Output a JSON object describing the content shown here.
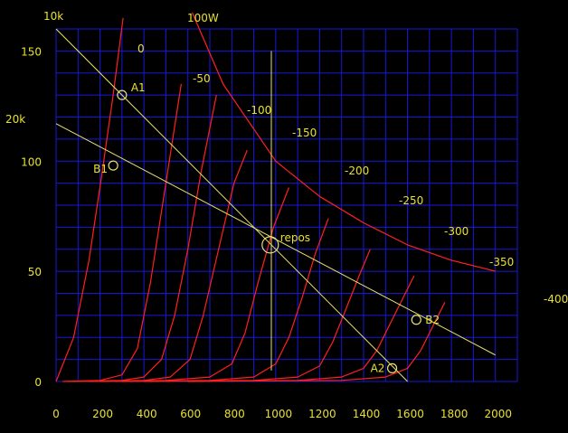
{
  "chart_data": {
    "type": "line",
    "title": "",
    "xlabel": "",
    "ylabel": "",
    "xlim": [
      0,
      2100
    ],
    "ylim": [
      0,
      160
    ],
    "x_ticks": [
      "0",
      "200",
      "400",
      "600",
      "800",
      "1000",
      "1200",
      "1400",
      "1600",
      "1800",
      "2000"
    ],
    "x_tick_values": [
      0,
      200,
      400,
      600,
      800,
      1000,
      1200,
      1400,
      1600,
      1800,
      2000
    ],
    "y_ticks": [
      "0",
      "50",
      "100",
      "150"
    ],
    "y_tick_values": [
      0,
      50,
      100,
      150
    ],
    "grid": true,
    "colors": {
      "background": "#000000",
      "grid": "#1818d8",
      "curves": "#ff2020",
      "load_lines": "#e8e070",
      "text": "#e8e030"
    },
    "series": [
      {
        "name": "0",
        "points": [
          [
            0,
            0
          ],
          [
            80,
            20
          ],
          [
            150,
            55
          ],
          [
            210,
            95
          ],
          [
            260,
            130
          ],
          [
            305,
            165
          ]
        ]
      },
      {
        "name": "-50",
        "points": [
          [
            30,
            0
          ],
          [
            200,
            0.5
          ],
          [
            300,
            3
          ],
          [
            370,
            15
          ],
          [
            430,
            45
          ],
          [
            500,
            90
          ],
          [
            570,
            135
          ]
        ]
      },
      {
        "name": "-100",
        "points": [
          [
            50,
            0
          ],
          [
            300,
            0.5
          ],
          [
            400,
            2
          ],
          [
            480,
            10
          ],
          [
            540,
            30
          ],
          [
            600,
            60
          ],
          [
            660,
            95
          ],
          [
            730,
            130
          ]
        ]
      },
      {
        "name": "-150",
        "points": [
          [
            80,
            0
          ],
          [
            400,
            0.5
          ],
          [
            520,
            2
          ],
          [
            610,
            10
          ],
          [
            670,
            30
          ],
          [
            740,
            60
          ],
          [
            810,
            90
          ],
          [
            870,
            105
          ]
        ]
      },
      {
        "name": "-200",
        "points": [
          [
            150,
            0
          ],
          [
            500,
            0.5
          ],
          [
            700,
            2
          ],
          [
            800,
            8
          ],
          [
            860,
            22
          ],
          [
            920,
            45
          ],
          [
            990,
            70
          ],
          [
            1060,
            88
          ]
        ]
      },
      {
        "name": "-250",
        "points": [
          [
            200,
            0
          ],
          [
            700,
            0.5
          ],
          [
            900,
            2
          ],
          [
            1000,
            8
          ],
          [
            1060,
            20
          ],
          [
            1120,
            38
          ],
          [
            1180,
            58
          ],
          [
            1240,
            74
          ]
        ]
      },
      {
        "name": "-300",
        "points": [
          [
            300,
            0
          ],
          [
            900,
            0.5
          ],
          [
            1100,
            2
          ],
          [
            1200,
            7
          ],
          [
            1260,
            18
          ],
          [
            1320,
            33
          ],
          [
            1380,
            48
          ],
          [
            1430,
            60
          ]
        ]
      },
      {
        "name": "-350",
        "points": [
          [
            400,
            0
          ],
          [
            1100,
            0.5
          ],
          [
            1300,
            2
          ],
          [
            1400,
            6
          ],
          [
            1460,
            14
          ],
          [
            1520,
            26
          ],
          [
            1580,
            38
          ],
          [
            1630,
            48
          ]
        ]
      },
      {
        "name": "-400",
        "points": [
          [
            600,
            0
          ],
          [
            1300,
            0.5
          ],
          [
            1500,
            2
          ],
          [
            1600,
            6
          ],
          [
            1660,
            14
          ],
          [
            1720,
            26
          ],
          [
            1770,
            36
          ]
        ]
      },
      {
        "name": "100W",
        "points": [
          [
            620,
            168
          ],
          [
            760,
            135
          ],
          [
            1000,
            100
          ],
          [
            1200,
            84
          ],
          [
            1400,
            72
          ],
          [
            1600,
            62
          ],
          [
            1800,
            55
          ],
          [
            2000,
            50
          ]
        ]
      }
    ],
    "load_lines": [
      {
        "name": "10k",
        "points": [
          [
            0,
            160
          ],
          [
            1600,
            0
          ]
        ]
      },
      {
        "name": "20k",
        "points": [
          [
            0,
            117
          ],
          [
            2000,
            12
          ]
        ]
      }
    ],
    "vertical_line": {
      "x": 980,
      "y": [
        5,
        150
      ]
    },
    "markers": [
      {
        "name": "A1",
        "x": 300,
        "y": 130
      },
      {
        "name": "B1",
        "x": 260,
        "y": 98
      },
      {
        "name": "repos",
        "x": 975,
        "y": 62
      },
      {
        "name": "A2",
        "x": 1530,
        "y": 6
      },
      {
        "name": "B2",
        "x": 1640,
        "y": 28
      }
    ]
  }
}
